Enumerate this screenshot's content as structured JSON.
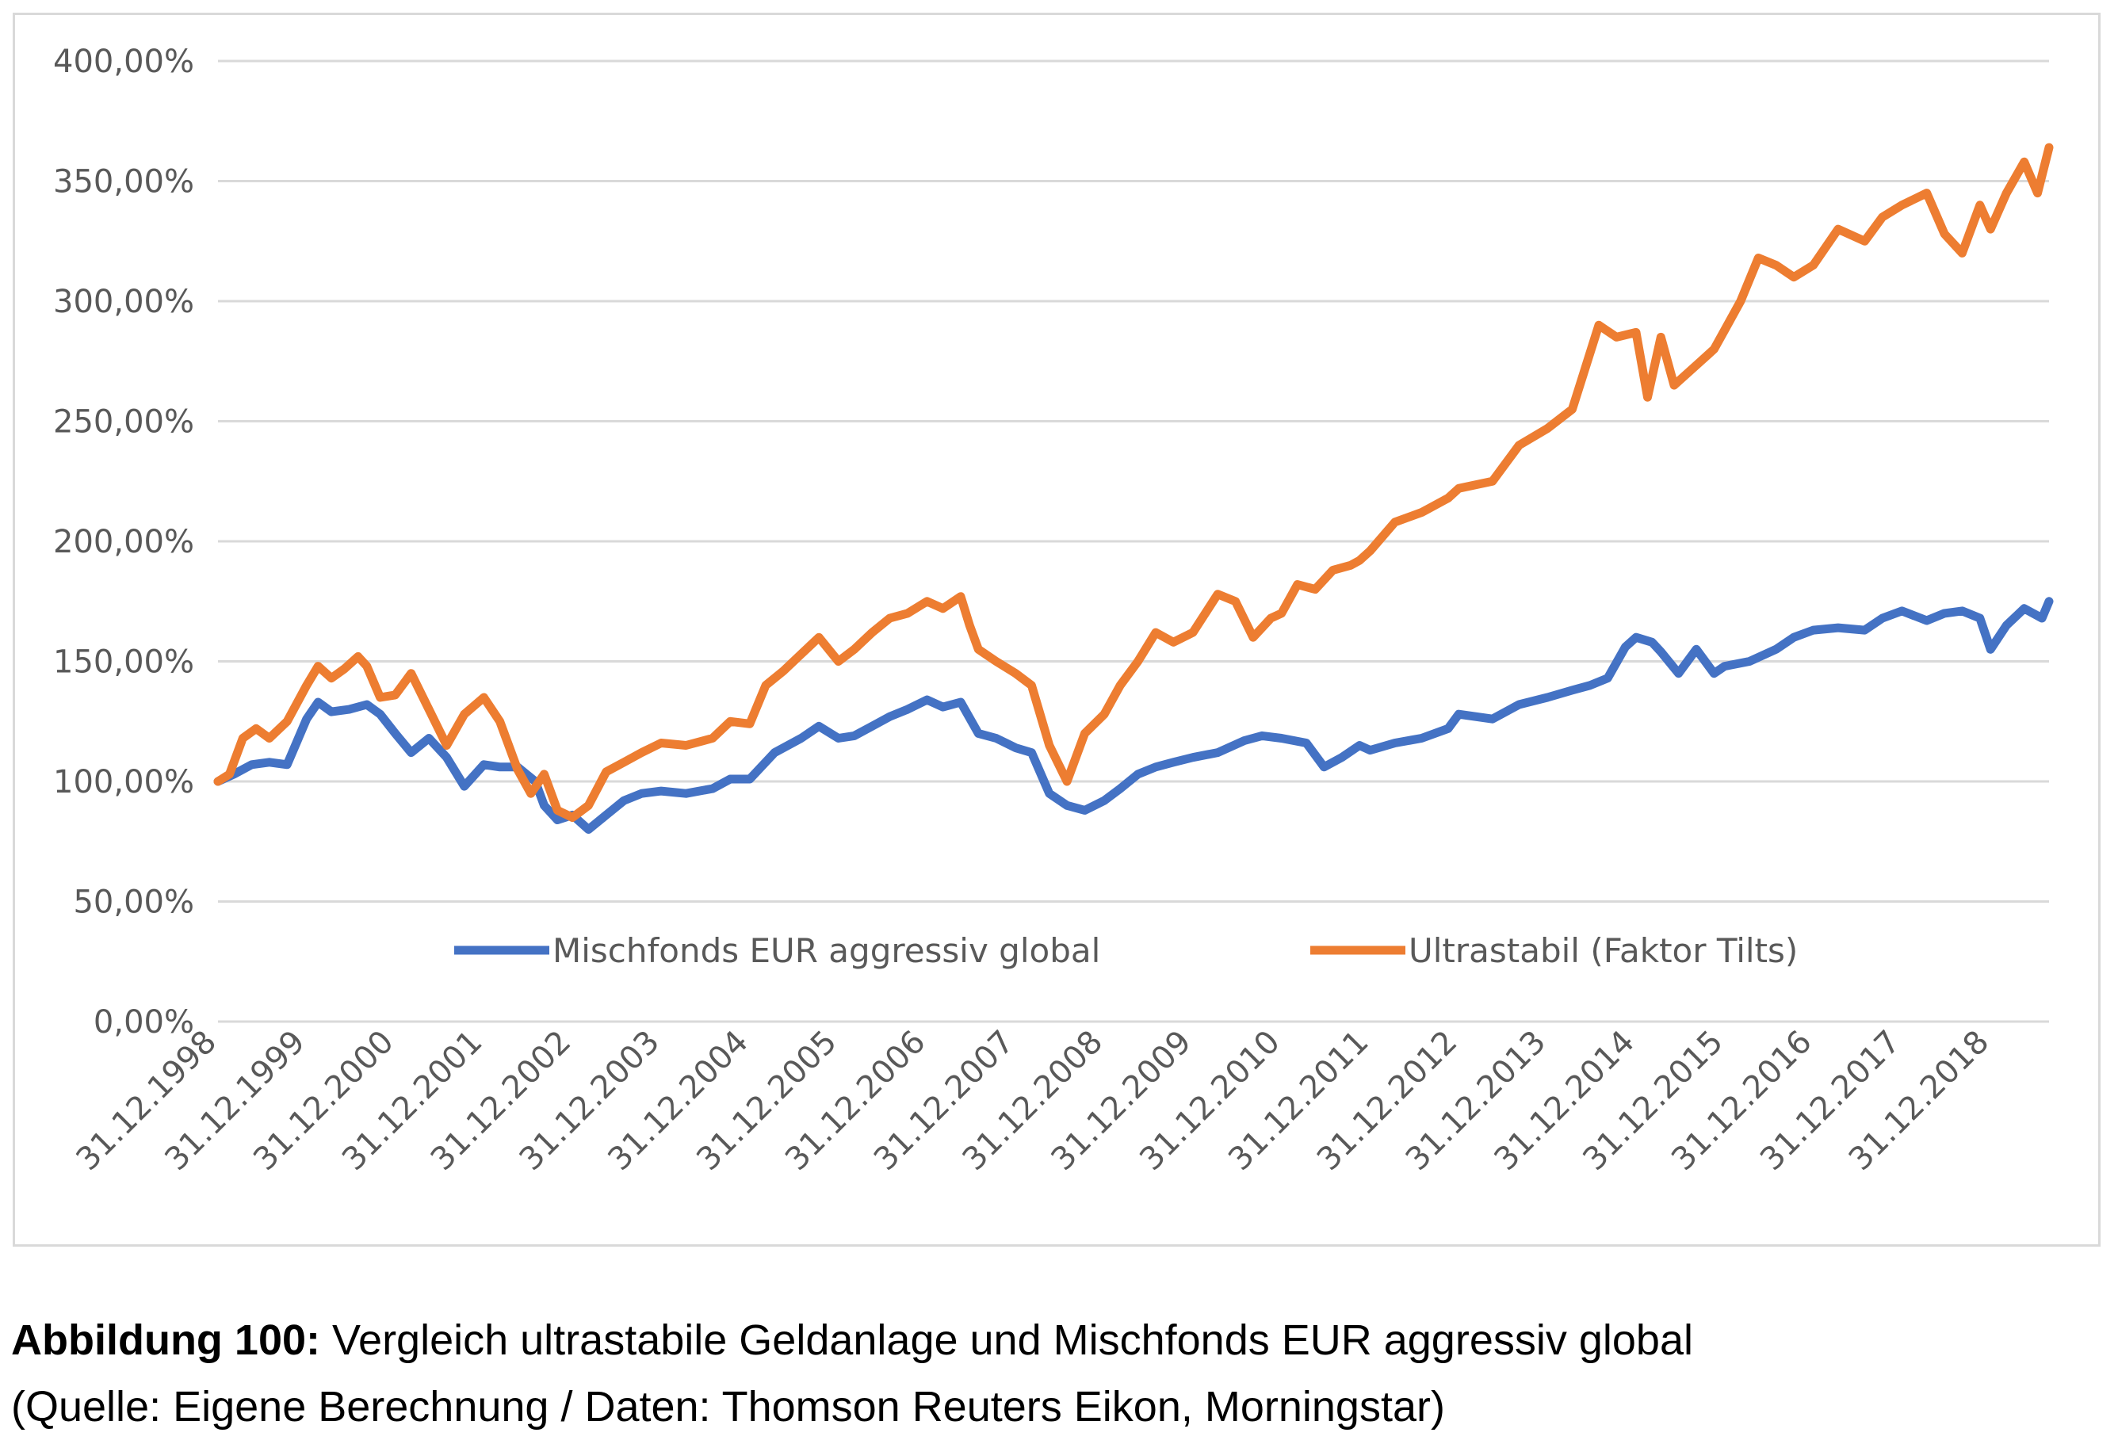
{
  "chart_data": {
    "type": "line",
    "title": "",
    "xlabel": "",
    "ylabel": "",
    "ylim": [
      0,
      400
    ],
    "y_ticks": [
      0,
      50,
      100,
      150,
      200,
      250,
      300,
      350,
      400
    ],
    "y_tick_labels": [
      "0,00%",
      "50,00%",
      "100,00%",
      "150,00%",
      "200,00%",
      "250,00%",
      "300,00%",
      "350,00%",
      "400,00%"
    ],
    "x_range": [
      1998.92,
      2019.58
    ],
    "x_ticks": [
      1998.92,
      1999.92,
      2000.92,
      2001.92,
      2002.92,
      2003.92,
      2004.92,
      2005.92,
      2006.92,
      2007.92,
      2008.92,
      2009.92,
      2010.92,
      2011.92,
      2012.92,
      2013.92,
      2014.92,
      2015.92,
      2016.92,
      2017.92,
      2018.92
    ],
    "x_tick_labels": [
      "31.12.1998",
      "31.12.1999",
      "31.12.2000",
      "31.12.2001",
      "31.12.2002",
      "31.12.2003",
      "31.12.2004",
      "31.12.2005",
      "31.12.2006",
      "31.12.2007",
      "31.12.2008",
      "31.12.2009",
      "31.12.2010",
      "31.12.2011",
      "31.12.2012",
      "31.12.2013",
      "31.12.2014",
      "31.12.2015",
      "31.12.2016",
      "31.12.2017",
      "31.12.2018"
    ],
    "grid": true,
    "legend_position": "bottom-inside",
    "series": [
      {
        "name": "Mischfonds EUR aggressiv global",
        "color": "#4472c4",
        "x": [
          1998.92,
          1999.1,
          1999.3,
          1999.5,
          1999.7,
          1999.92,
          2000.05,
          2000.2,
          2000.4,
          2000.6,
          2000.75,
          2000.92,
          2001.1,
          2001.3,
          2001.5,
          2001.7,
          2001.92,
          2002.1,
          2002.3,
          2002.5,
          2002.6,
          2002.75,
          2002.92,
          2003.1,
          2003.3,
          2003.5,
          2003.7,
          2003.92,
          2004.2,
          2004.5,
          2004.7,
          2004.92,
          2005.2,
          2005.5,
          2005.7,
          2005.92,
          2006.1,
          2006.3,
          2006.5,
          2006.7,
          2006.92,
          2007.1,
          2007.3,
          2007.5,
          2007.7,
          2007.92,
          2008.1,
          2008.3,
          2008.5,
          2008.7,
          2008.92,
          2009.1,
          2009.3,
          2009.5,
          2009.7,
          2009.92,
          2010.2,
          2010.5,
          2010.7,
          2010.92,
          2011.2,
          2011.4,
          2011.6,
          2011.8,
          2011.92,
          2012.2,
          2012.5,
          2012.8,
          2012.92,
          2013.3,
          2013.6,
          2013.92,
          2014.2,
          2014.4,
          2014.6,
          2014.8,
          2014.92,
          2015.1,
          2015.2,
          2015.4,
          2015.6,
          2015.8,
          2015.92,
          2016.2,
          2016.5,
          2016.7,
          2016.92,
          2017.2,
          2017.5,
          2017.7,
          2017.92,
          2018.2,
          2018.4,
          2018.6,
          2018.8,
          2018.92,
          2019.1,
          2019.3,
          2019.5,
          2019.58
        ],
        "values": [
          100,
          103,
          107,
          108,
          107,
          126,
          133,
          129,
          130,
          132,
          128,
          120,
          112,
          118,
          110,
          98,
          107,
          106,
          106,
          100,
          90,
          84,
          86,
          80,
          86,
          92,
          95,
          96,
          95,
          97,
          101,
          101,
          112,
          118,
          123,
          118,
          119,
          123,
          127,
          130,
          134,
          131,
          133,
          120,
          118,
          114,
          112,
          95,
          90,
          88,
          92,
          97,
          103,
          106,
          108,
          110,
          112,
          117,
          119,
          118,
          116,
          106,
          110,
          115,
          113,
          116,
          118,
          122,
          128,
          126,
          132,
          135,
          138,
          140,
          143,
          156,
          160,
          158,
          154,
          145,
          155,
          145,
          148,
          150,
          155,
          160,
          163,
          164,
          163,
          168,
          171,
          167,
          170,
          171,
          168,
          155,
          165,
          172,
          168,
          175
        ]
      },
      {
        "name": "Ultrastabil (Faktor Tilts)",
        "color": "#ed7d31",
        "x": [
          1998.92,
          1999.05,
          1999.2,
          1999.35,
          1999.5,
          1999.7,
          1999.92,
          2000.05,
          2000.2,
          2000.35,
          2000.5,
          2000.6,
          2000.75,
          2000.92,
          2001.1,
          2001.3,
          2001.5,
          2001.7,
          2001.92,
          2002.1,
          2002.3,
          2002.45,
          2002.6,
          2002.75,
          2002.92,
          2003.1,
          2003.3,
          2003.5,
          2003.7,
          2003.92,
          2004.2,
          2004.5,
          2004.7,
          2004.92,
          2005.1,
          2005.3,
          2005.5,
          2005.7,
          2005.92,
          2006.1,
          2006.3,
          2006.5,
          2006.7,
          2006.92,
          2007.1,
          2007.3,
          2007.4,
          2007.5,
          2007.7,
          2007.92,
          2008.1,
          2008.3,
          2008.5,
          2008.7,
          2008.92,
          2009.1,
          2009.3,
          2009.5,
          2009.7,
          2009.92,
          2010.2,
          2010.4,
          2010.6,
          2010.8,
          2010.92,
          2011.1,
          2011.3,
          2011.5,
          2011.7,
          2011.8,
          2011.92,
          2012.2,
          2012.5,
          2012.8,
          2012.92,
          2013.3,
          2013.6,
          2013.92,
          2014.2,
          2014.5,
          2014.7,
          2014.92,
          2015.05,
          2015.2,
          2015.35,
          2015.5,
          2015.65,
          2015.8,
          2015.92,
          2016.1,
          2016.3,
          2016.5,
          2016.7,
          2016.92,
          2017.2,
          2017.5,
          2017.7,
          2017.92,
          2018.2,
          2018.4,
          2018.6,
          2018.8,
          2018.92,
          2019.1,
          2019.3,
          2019.45,
          2019.58
        ],
        "values": [
          100,
          103,
          118,
          122,
          118,
          125,
          140,
          148,
          143,
          147,
          152,
          148,
          135,
          136,
          145,
          130,
          115,
          128,
          135,
          125,
          105,
          95,
          103,
          88,
          85,
          90,
          104,
          108,
          112,
          116,
          115,
          118,
          125,
          124,
          140,
          146,
          153,
          160,
          150,
          155,
          162,
          168,
          170,
          175,
          172,
          177,
          165,
          155,
          150,
          145,
          140,
          115,
          100,
          120,
          128,
          140,
          150,
          162,
          158,
          162,
          178,
          175,
          160,
          168,
          170,
          182,
          180,
          188,
          190,
          192,
          196,
          208,
          212,
          218,
          222,
          225,
          240,
          247,
          255,
          290,
          285,
          287,
          260,
          285,
          265,
          270,
          275,
          280,
          288,
          300,
          318,
          315,
          310,
          315,
          330,
          325,
          335,
          340,
          345,
          328,
          320,
          340,
          330,
          345,
          358,
          345,
          364
        ]
      }
    ]
  },
  "caption": {
    "label": "Abbildung 100:",
    "text": " Vergleich ultrastabile Geldanlage  und Mischfonds  EUR aggressiv global",
    "source": "(Quelle:  Eigene  Berechnung  /  Daten:  Thomson  Reuters  Eikon,  Morningstar)"
  }
}
